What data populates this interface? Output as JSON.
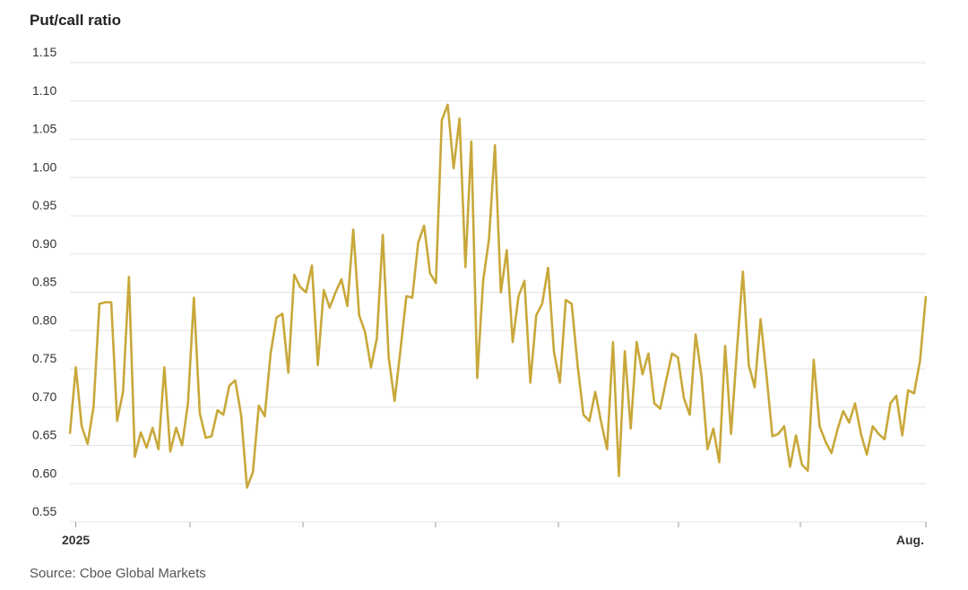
{
  "chart_data": {
    "type": "line",
    "title": "Put/call ratio",
    "source": "Source: Cboe Global Markets",
    "color": "#c8a83a",
    "grid": true,
    "ylim": [
      0.55,
      1.15
    ],
    "yticks": [
      0.55,
      {
        "value": 0.6,
        "label": "0.60"
      },
      0.65,
      {
        "value": 0.7,
        "label": "0.70"
      },
      0.75,
      {
        "value": 0.8,
        "label": "0.80"
      },
      0.85,
      {
        "value": 0.9,
        "label": "0.90"
      },
      0.95,
      {
        "value": 1.0,
        "label": "1.00"
      },
      1.05,
      {
        "value": 1.1,
        "label": "1.10"
      },
      1.15
    ],
    "categories": [
      null,
      "2025",
      null,
      null,
      null,
      null,
      null,
      null,
      null,
      null,
      null,
      null,
      null,
      null,
      null,
      null,
      null,
      null,
      null,
      null,
      null,
      null,
      null,
      null,
      null,
      null,
      null,
      null,
      null,
      null,
      null,
      null,
      null,
      null,
      null,
      null,
      null,
      null,
      null,
      null,
      null,
      null,
      null,
      null,
      null,
      null,
      null,
      null,
      null,
      null,
      null,
      null,
      null,
      null,
      null,
      null,
      null,
      null,
      null,
      null,
      null,
      null,
      null,
      null,
      null,
      null,
      null,
      null,
      null,
      null,
      null,
      null,
      null,
      null,
      null,
      null,
      null,
      null,
      null,
      null,
      null,
      null,
      null,
      null,
      null,
      null,
      null,
      null,
      null,
      null,
      null,
      null,
      null,
      null,
      null,
      null,
      null,
      null,
      null,
      null,
      null,
      null,
      null,
      null,
      null,
      null,
      null,
      null,
      null,
      null,
      null,
      null,
      null,
      null,
      null,
      null,
      null,
      null,
      null,
      null,
      null,
      null,
      null,
      null,
      null,
      null,
      null,
      null,
      null,
      null,
      null,
      null,
      null,
      null,
      null,
      null,
      null,
      null,
      null,
      null,
      null,
      null,
      null,
      null,
      null,
      "Aug."
    ],
    "values": [
      0.665,
      0.752,
      0.675,
      0.652,
      0.7,
      0.835,
      0.837,
      0.837,
      0.682,
      0.72,
      0.87,
      0.635,
      0.667,
      0.647,
      0.673,
      0.645,
      0.752,
      0.642,
      0.673,
      0.65,
      0.705,
      0.843,
      0.692,
      0.66,
      0.662,
      0.696,
      0.69,
      0.728,
      0.735,
      0.69,
      0.595,
      0.615,
      0.702,
      0.688,
      0.77,
      0.817,
      0.822,
      0.745,
      0.873,
      0.857,
      0.85,
      0.885,
      0.755,
      0.853,
      0.83,
      0.85,
      0.867,
      0.832,
      0.932,
      0.82,
      0.798,
      0.752,
      0.79,
      0.925,
      0.765,
      0.708,
      0.775,
      0.845,
      0.843,
      0.915,
      0.937,
      0.875,
      0.862,
      1.075,
      1.095,
      1.012,
      1.077,
      0.883,
      1.047,
      0.738,
      0.865,
      0.92,
      1.042,
      0.85,
      0.905,
      0.785,
      0.845,
      0.865,
      0.732,
      0.82,
      0.835,
      0.882,
      0.772,
      0.732,
      0.84,
      0.835,
      0.755,
      0.69,
      0.682,
      0.72,
      0.68,
      0.645,
      0.785,
      0.61,
      0.773,
      0.672,
      0.785,
      0.743,
      0.77,
      0.705,
      0.698,
      0.735,
      0.77,
      0.765,
      0.712,
      0.69,
      0.795,
      0.74,
      0.645,
      0.672,
      0.628,
      0.78,
      0.665,
      0.775,
      0.877,
      0.755,
      0.726,
      0.815,
      0.742,
      0.662,
      0.665,
      0.675,
      0.622,
      0.663,
      0.625,
      0.617,
      0.762,
      0.675,
      0.655,
      0.64,
      0.67,
      0.695,
      0.68,
      0.705,
      0.665,
      0.638,
      0.675,
      0.665,
      0.658,
      0.705,
      0.715,
      0.663,
      0.722,
      0.718,
      0.76,
      0.845
    ]
  }
}
